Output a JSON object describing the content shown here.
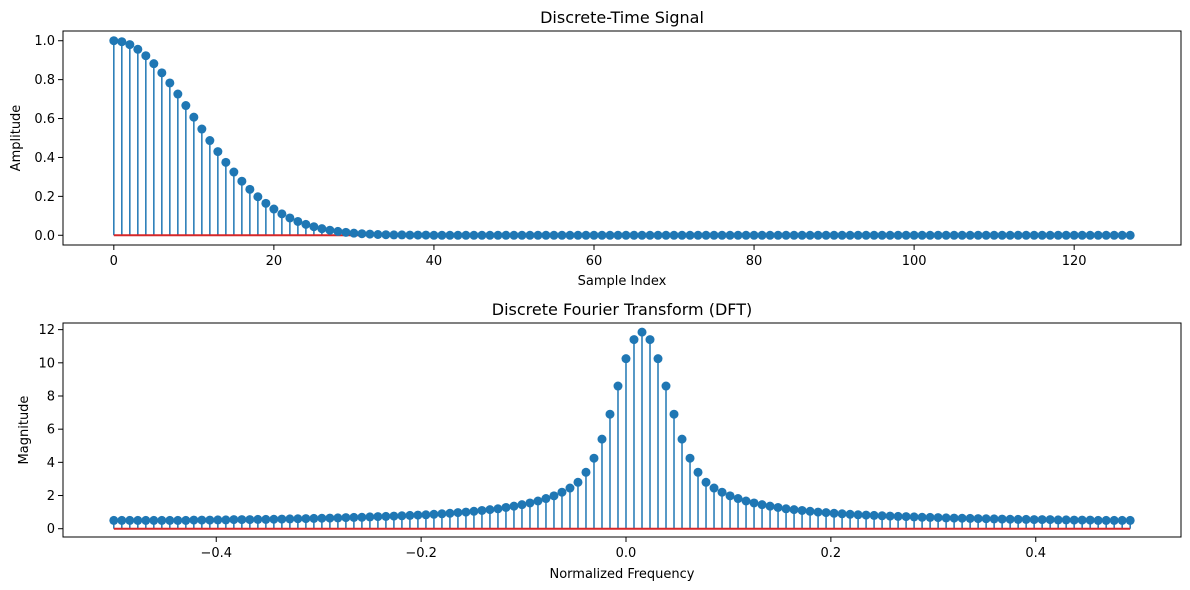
{
  "chart_data": [
    {
      "type": "stem",
      "title": "Discrete-Time Signal",
      "xlabel": "Sample Index",
      "ylabel": "Amplitude",
      "xlim": [
        -6.35,
        133.35
      ],
      "ylim": [
        -0.05,
        1.05
      ],
      "xticks": [
        0,
        20,
        40,
        60,
        80,
        100,
        120
      ],
      "xtick_labels": [
        "0",
        "20",
        "40",
        "60",
        "80",
        "100",
        "120"
      ],
      "yticks": [
        0.0,
        0.2,
        0.4,
        0.6,
        0.8,
        1.0
      ],
      "ytick_labels": [
        "0.0",
        "0.2",
        "0.4",
        "0.6",
        "0.8",
        "1.0"
      ],
      "grid": false,
      "marker_color": "#1f77b4",
      "baseline_color": "#d62728",
      "x": [
        0,
        1,
        2,
        3,
        4,
        5,
        6,
        7,
        8,
        9,
        10,
        11,
        12,
        13,
        14,
        15,
        16,
        17,
        18,
        19,
        20,
        21,
        22,
        23,
        24,
        25,
        26,
        27,
        28,
        29,
        30,
        31,
        32,
        33,
        34,
        35,
        36,
        37,
        38,
        39,
        40,
        41,
        42,
        43,
        44,
        45,
        46,
        47,
        48,
        49,
        50,
        51,
        52,
        53,
        54,
        55,
        56,
        57,
        58,
        59,
        60,
        61,
        62,
        63,
        64,
        65,
        66,
        67,
        68,
        69,
        70,
        71,
        72,
        73,
        74,
        75,
        76,
        77,
        78,
        79,
        80,
        81,
        82,
        83,
        84,
        85,
        86,
        87,
        88,
        89,
        90,
        91,
        92,
        93,
        94,
        95,
        96,
        97,
        98,
        99,
        100,
        101,
        102,
        103,
        104,
        105,
        106,
        107,
        108,
        109,
        110,
        111,
        112,
        113,
        114,
        115,
        116,
        117,
        118,
        119,
        120,
        121,
        122,
        123,
        124,
        125,
        126,
        127
      ],
      "values": [
        1.0,
        0.995,
        0.98,
        0.956,
        0.923,
        0.882,
        0.835,
        0.783,
        0.726,
        0.667,
        0.607,
        0.546,
        0.487,
        0.43,
        0.375,
        0.325,
        0.278,
        0.236,
        0.198,
        0.164,
        0.135,
        0.11,
        0.089,
        0.071,
        0.056,
        0.044,
        0.034,
        0.026,
        0.02,
        0.015,
        0.011,
        0.008,
        0.006,
        0.004,
        0.003,
        0.002,
        0.002,
        0.001,
        0.001,
        0.001,
        0,
        0,
        0,
        0,
        0,
        0,
        0,
        0,
        0,
        0,
        0,
        0,
        0,
        0,
        0,
        0,
        0,
        0,
        0,
        0,
        0,
        0,
        0,
        0,
        0,
        0,
        0,
        0,
        0,
        0,
        0,
        0,
        0,
        0,
        0,
        0,
        0,
        0,
        0,
        0,
        0,
        0,
        0,
        0,
        0,
        0,
        0,
        0,
        0,
        0,
        0,
        0,
        0,
        0,
        0,
        0,
        0,
        0,
        0,
        0,
        0,
        0,
        0,
        0,
        0,
        0,
        0,
        0,
        0,
        0,
        0,
        0,
        0,
        0,
        0,
        0,
        0,
        0,
        0,
        0,
        0,
        0,
        0,
        0,
        0,
        0,
        0,
        0
      ]
    },
    {
      "type": "stem",
      "title": "Discrete Fourier Transform (DFT)",
      "xlabel": "Normalized Frequency",
      "ylabel": "Magnitude",
      "xlim": [
        -0.5496,
        0.5418
      ],
      "ylim": [
        -0.5,
        12.4
      ],
      "xticks": [
        -0.4,
        -0.2,
        0.0,
        0.2,
        0.4
      ],
      "xtick_labels": [
        "−0.4",
        "−0.2",
        "0.0",
        "0.2",
        "0.4"
      ],
      "yticks": [
        0,
        2,
        4,
        6,
        8,
        10,
        12
      ],
      "ytick_labels": [
        "0",
        "2",
        "4",
        "6",
        "8",
        "10",
        "12"
      ],
      "grid": false,
      "marker_color": "#1f77b4",
      "baseline_color": "#d62728",
      "x_start": -0.5,
      "x_step": 0.0078125,
      "values": [
        0.5,
        0.5,
        0.5,
        0.5,
        0.5,
        0.5,
        0.5,
        0.5,
        0.5,
        0.5,
        0.52,
        0.52,
        0.52,
        0.53,
        0.53,
        0.55,
        0.55,
        0.55,
        0.56,
        0.56,
        0.57,
        0.58,
        0.59,
        0.6,
        0.61,
        0.62,
        0.63,
        0.64,
        0.65,
        0.67,
        0.68,
        0.69,
        0.71,
        0.73,
        0.74,
        0.76,
        0.78,
        0.8,
        0.82,
        0.84,
        0.87,
        0.9,
        0.93,
        0.97,
        1.0,
        1.05,
        1.1,
        1.15,
        1.2,
        1.28,
        1.36,
        1.45,
        1.55,
        1.67,
        1.82,
        1.98,
        2.2,
        2.45,
        2.8,
        3.4,
        4.25,
        5.4,
        6.9,
        8.6,
        10.25,
        11.4,
        11.85,
        11.4,
        10.25,
        8.6,
        6.9,
        5.4,
        4.25,
        3.4,
        2.8,
        2.45,
        2.2,
        1.98,
        1.82,
        1.67,
        1.55,
        1.45,
        1.36,
        1.28,
        1.2,
        1.15,
        1.1,
        1.05,
        1.0,
        0.97,
        0.93,
        0.9,
        0.87,
        0.84,
        0.82,
        0.8,
        0.78,
        0.76,
        0.74,
        0.73,
        0.71,
        0.69,
        0.68,
        0.67,
        0.65,
        0.64,
        0.63,
        0.62,
        0.61,
        0.6,
        0.59,
        0.58,
        0.57,
        0.56,
        0.56,
        0.55,
        0.55,
        0.55,
        0.53,
        0.53,
        0.52,
        0.52,
        0.52,
        0.5,
        0.5,
        0.5,
        0.5,
        0.5
      ]
    }
  ]
}
